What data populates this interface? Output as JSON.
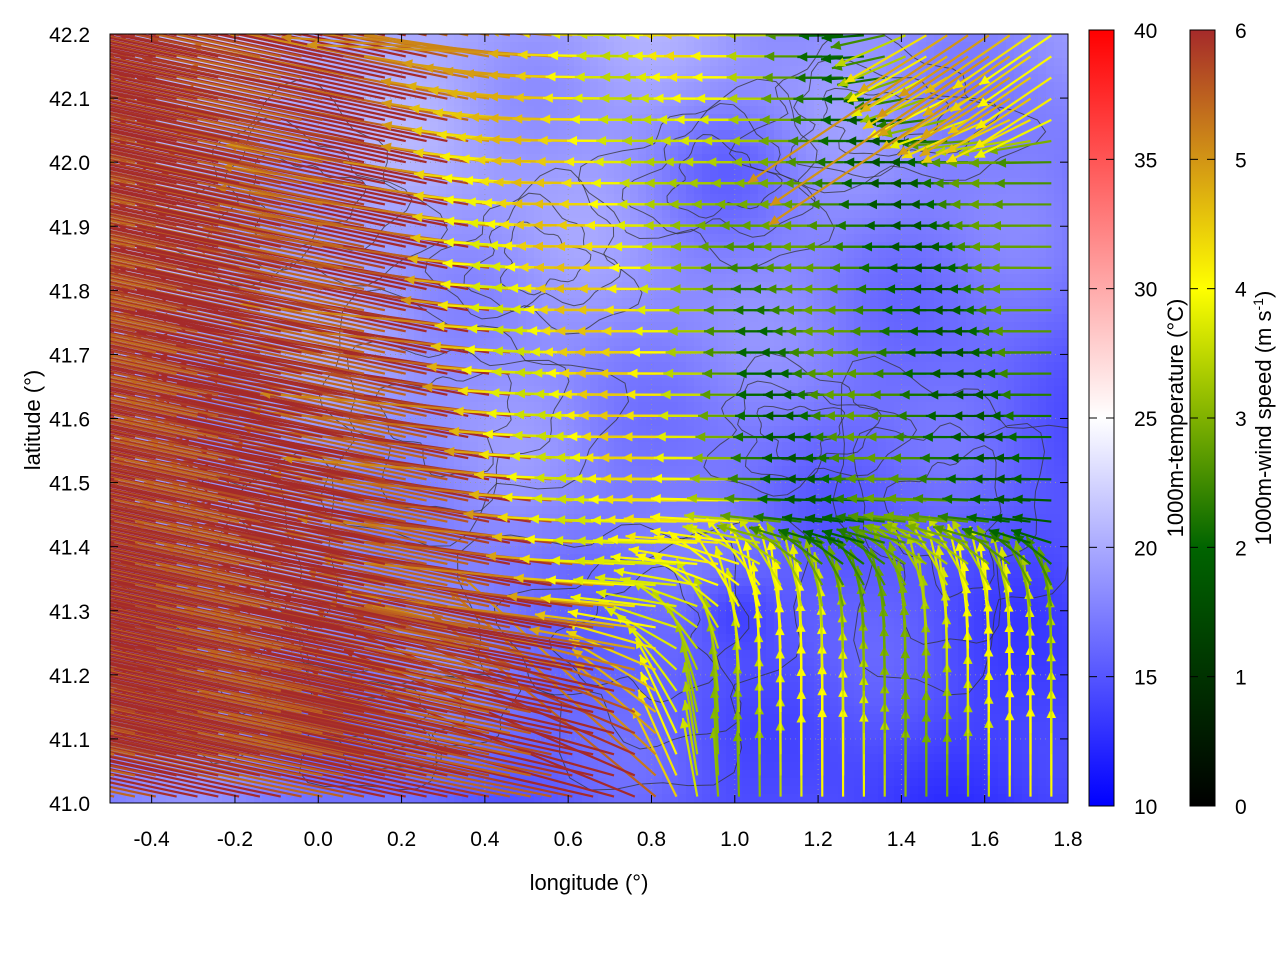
{
  "chart_data": {
    "type": "heatmap",
    "title": "",
    "xlabel": "longitude (°)",
    "ylabel": "latitude (°)",
    "xlim": [
      -0.5,
      1.8
    ],
    "ylim": [
      41.0,
      42.2
    ],
    "x_ticks": [
      "-0.4",
      "-0.2",
      "0.0",
      "0.2",
      "0.4",
      "0.6",
      "0.8",
      "1.0",
      "1.2",
      "1.4",
      "1.6",
      "1.8"
    ],
    "y_ticks": [
      "41.0",
      "41.1",
      "41.2",
      "41.3",
      "41.4",
      "41.5",
      "41.6",
      "41.7",
      "41.8",
      "41.9",
      "42.0",
      "42.1",
      "42.2"
    ],
    "grid": true,
    "temperature": {
      "label": "1000m-temperature (°C)",
      "range": [
        10,
        40
      ],
      "ticks": [
        "10",
        "15",
        "20",
        "25",
        "30",
        "35",
        "40"
      ],
      "colors": [
        "#0000ff",
        "#ffffff",
        "#ff0000"
      ],
      "field_summary": [
        {
          "region": "south-west",
          "value_c": 21
        },
        {
          "region": "centre",
          "value_c": 18
        },
        {
          "region": "north-east",
          "value_c": 13
        }
      ]
    },
    "wind": {
      "label": "1000m-wind speed (m s",
      "label_sup": "-1",
      "label_end": ")",
      "range": [
        0,
        6
      ],
      "ticks": [
        "0",
        "1",
        "2",
        "3",
        "4",
        "5",
        "6"
      ],
      "colors": [
        "#000000",
        "#006400",
        "#ffff00",
        "#a52a2a"
      ],
      "regimes": [
        {
          "region": "west",
          "direction": "from east-south-east",
          "speed_ms": 6
        },
        {
          "region": "centre",
          "direction": "from east",
          "speed_ms": 4
        },
        {
          "region": "east",
          "direction": "from east",
          "speed_ms": 2.2
        },
        {
          "region": "south-east",
          "direction": "from south",
          "speed_ms": 3.5
        },
        {
          "region": "north-east",
          "direction": "from north-east",
          "speed_ms": 4.5
        }
      ]
    }
  }
}
